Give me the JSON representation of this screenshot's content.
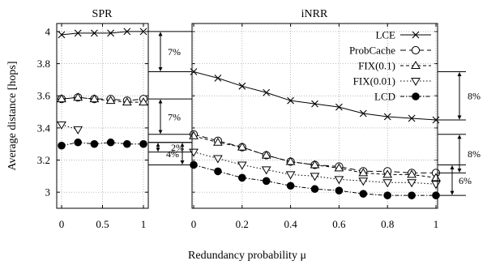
{
  "chart_data": {
    "type": "line",
    "ylabel": "Average distance [hops]",
    "xlabel": "Redundancy probability μ",
    "ylim": [
      2.9,
      4.05
    ],
    "y_ticks": [
      "3",
      "3.2",
      "3.4",
      "3.6",
      "3.8",
      "4"
    ],
    "grid": "on",
    "legend": {
      "placement": "top-right of iNRR panel",
      "entries": [
        "LCE",
        "ProbCache",
        "FIX(0.1)",
        "FIX(0.01)",
        "LCD"
      ]
    },
    "panels": [
      {
        "title": "SPR",
        "xlim": [
          0,
          1
        ],
        "x_ticks": [
          "0",
          "0.5",
          "1"
        ],
        "x": [
          0,
          0.2,
          0.4,
          0.6,
          0.8,
          1.0
        ],
        "series": [
          {
            "name": "LCE",
            "values": [
              3.98,
              3.99,
              3.99,
              3.99,
              4.0,
              4.0
            ]
          },
          {
            "name": "ProbCache",
            "values": [
              3.58,
              3.59,
              3.58,
              3.58,
              3.57,
              3.58
            ]
          },
          {
            "name": "FIX(0.1)",
            "values": [
              3.58,
              3.59,
              3.58,
              3.57,
              3.56,
              3.56
            ]
          },
          {
            "name": "FIX(0.01)",
            "values": [
              3.42,
              3.39,
              null,
              null,
              null,
              null
            ]
          },
          {
            "name": "LCD",
            "values": [
              3.29,
              3.31,
              3.3,
              3.31,
              3.3,
              3.3
            ]
          }
        ]
      },
      {
        "title": "iNRR",
        "xlim": [
          0,
          1
        ],
        "x_ticks": [
          "0",
          "0.2",
          "0.4",
          "0.6",
          "0.8",
          "1"
        ],
        "x": [
          0,
          0.1,
          0.2,
          0.3,
          0.4,
          0.5,
          0.6,
          0.7,
          0.8,
          0.9,
          1.0
        ],
        "series": [
          {
            "name": "LCE",
            "values": [
              3.75,
              3.71,
              3.66,
              3.62,
              3.57,
              3.55,
              3.53,
              3.49,
              3.47,
              3.46,
              3.45
            ]
          },
          {
            "name": "ProbCache",
            "values": [
              3.36,
              3.32,
              3.28,
              3.23,
              3.19,
              3.17,
              3.16,
              3.13,
              3.13,
              3.12,
              3.12
            ]
          },
          {
            "name": "FIX(0.1)",
            "values": [
              3.35,
              3.31,
              3.28,
              3.23,
              3.19,
              3.17,
              3.15,
              3.12,
              3.11,
              3.11,
              3.09
            ]
          },
          {
            "name": "FIX(0.01)",
            "values": [
              3.25,
              3.21,
              3.17,
              3.14,
              3.11,
              3.1,
              3.08,
              3.07,
              3.06,
              3.06,
              3.05
            ]
          },
          {
            "name": "LCD",
            "values": [
              3.17,
              3.13,
              3.09,
              3.07,
              3.04,
              3.02,
              3.01,
              2.99,
              2.98,
              2.98,
              2.98
            ]
          }
        ]
      }
    ],
    "annotations": [
      {
        "label": "7%",
        "from": 4.0,
        "to": 3.75
      },
      {
        "label": "7%",
        "from": 3.58,
        "to": 3.36
      },
      {
        "label": "2%",
        "from": 3.31,
        "to": 3.25
      },
      {
        "label": "4%",
        "from": 3.31,
        "to": 3.17
      },
      {
        "label": "8%",
        "from": 3.75,
        "to": 3.45
      },
      {
        "label": "8%",
        "from": 3.36,
        "to": 3.12
      },
      {
        "label": "6%",
        "from": 3.17,
        "to": 2.98
      }
    ]
  }
}
